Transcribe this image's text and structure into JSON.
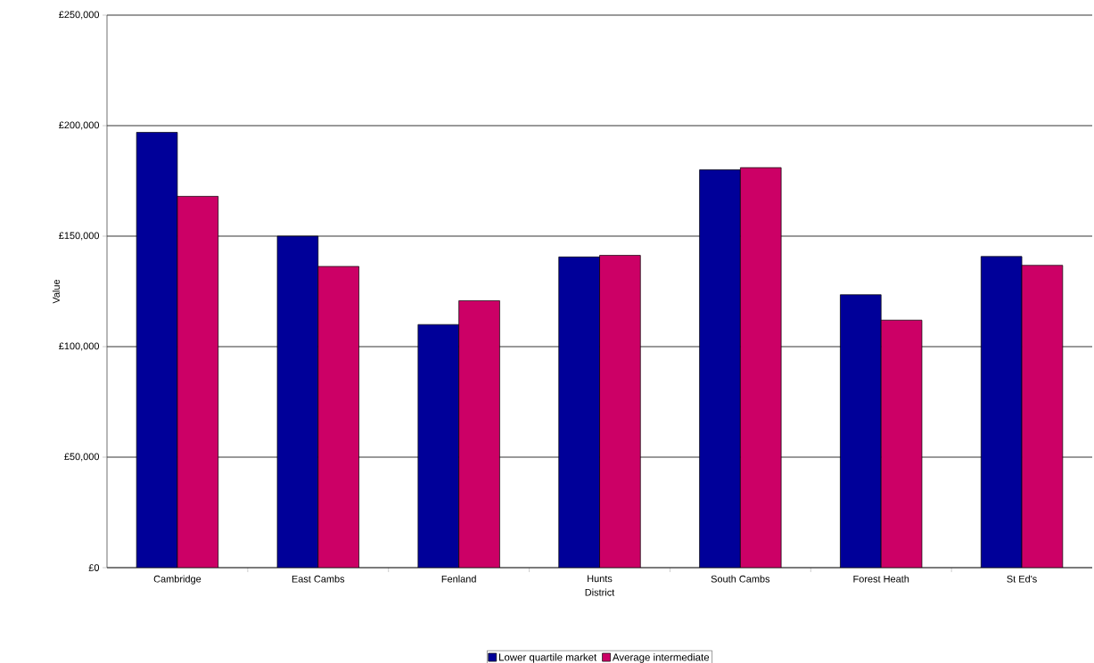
{
  "chart_data": {
    "type": "bar",
    "xlabel": "District",
    "ylabel": "Value",
    "categories": [
      "Cambridge",
      "East Cambs",
      "Fenland",
      "Hunts",
      "South Cambs",
      "Forest Heath",
      "St Ed's"
    ],
    "series": [
      {
        "name": "Lower quartile market",
        "color": "#000099",
        "values": [
          197000,
          150000,
          110000,
          140600,
          180000,
          123500,
          140800
        ]
      },
      {
        "name": "Average intermediate",
        "color": "#cc0066",
        "values": [
          168000,
          136300,
          120800,
          141300,
          181000,
          112000,
          136800
        ]
      }
    ],
    "ylim": [
      0,
      250000
    ],
    "yticks": [
      {
        "value": 0,
        "label": "£0"
      },
      {
        "value": 50000,
        "label": "£50,000"
      },
      {
        "value": 100000,
        "label": "£100,000"
      },
      {
        "value": 150000,
        "label": "£150,000"
      },
      {
        "value": 200000,
        "label": "£200,000"
      },
      {
        "value": 250000,
        "label": "£250,000"
      }
    ],
    "grid": "y",
    "legend": "bottom"
  }
}
